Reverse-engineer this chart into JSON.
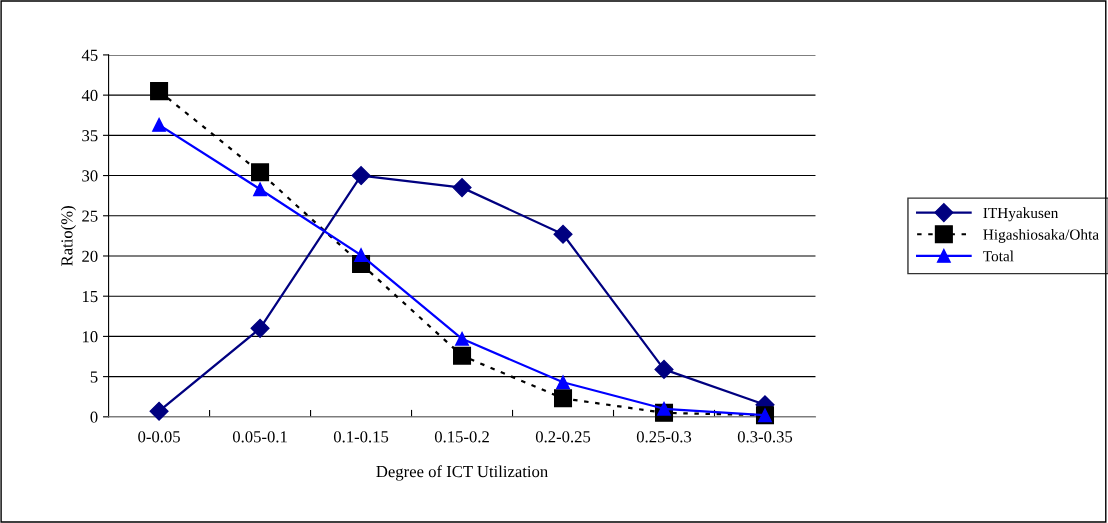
{
  "chart_data": {
    "type": "line",
    "xlabel": "Degree of ICT Utilization",
    "ylabel": "Ratio(%)",
    "categories": [
      "0-0.05",
      "0.05-0.1",
      "0.1-0.15",
      "0.15-0.2",
      "0.2-0.25",
      "0.25-0.3",
      "0.3-0.35"
    ],
    "series": [
      {
        "name": "ITHyakusen",
        "color": "#000080",
        "marker": "diamond",
        "line_style": "solid",
        "values": [
          0.7,
          11,
          30,
          28.5,
          22.7,
          5.9,
          1.5
        ]
      },
      {
        "name": "Higashiosaka/Ohta",
        "color": "#000000",
        "marker": "square",
        "line_style": "dotted",
        "values": [
          40.5,
          30.4,
          19,
          7.6,
          2.3,
          0.5,
          0.2
        ]
      },
      {
        "name": "Total",
        "color": "#0000ff",
        "marker": "triangle",
        "line_style": "solid",
        "values": [
          36.3,
          28.3,
          20.1,
          9.7,
          4.3,
          1,
          0.2
        ]
      }
    ],
    "ylim": [
      0,
      45
    ],
    "yticks": [
      0,
      5,
      10,
      15,
      20,
      25,
      30,
      35,
      40,
      45
    ],
    "grid": "y",
    "legend": "right"
  }
}
